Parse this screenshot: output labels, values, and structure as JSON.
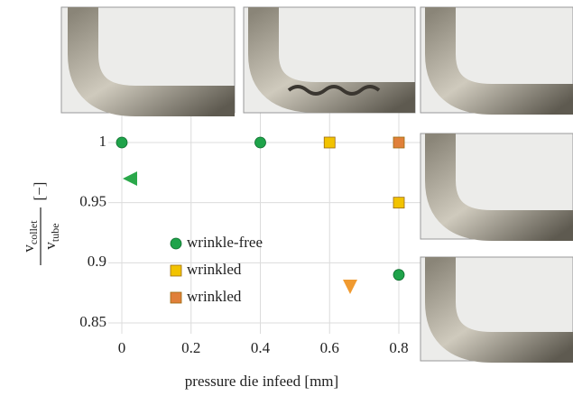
{
  "chart_data": {
    "type": "scatter",
    "x_label": "pressure die infeed [mm]",
    "y_label": {
      "numerator": "v",
      "numerator_sub": "collet",
      "denominator": "v",
      "denominator_sub": "tube",
      "unit": "[−]"
    },
    "xlim": [
      0,
      0.8
    ],
    "ylim": [
      0.85,
      1
    ],
    "xticks": [
      0,
      0.2,
      0.4,
      0.6,
      0.8
    ],
    "yticks": [
      0.85,
      0.9,
      0.95,
      1
    ],
    "grid": true,
    "legend": "lower left",
    "series": [
      {
        "name": "wrinkle-free",
        "color": "#1fa34a",
        "marker": "circle",
        "x": [
          0,
          0.4,
          0.8
        ],
        "values": [
          1,
          1,
          0.89
        ]
      },
      {
        "name": "wrinkled",
        "color": "#f2c300",
        "marker": "square",
        "x": [
          0.6,
          0.8
        ],
        "values": [
          1,
          0.95
        ]
      },
      {
        "name": "wrinkled",
        "color": "#e0803a",
        "marker": "square",
        "x": [
          0.8
        ],
        "values": [
          1
        ]
      }
    ]
  }
}
